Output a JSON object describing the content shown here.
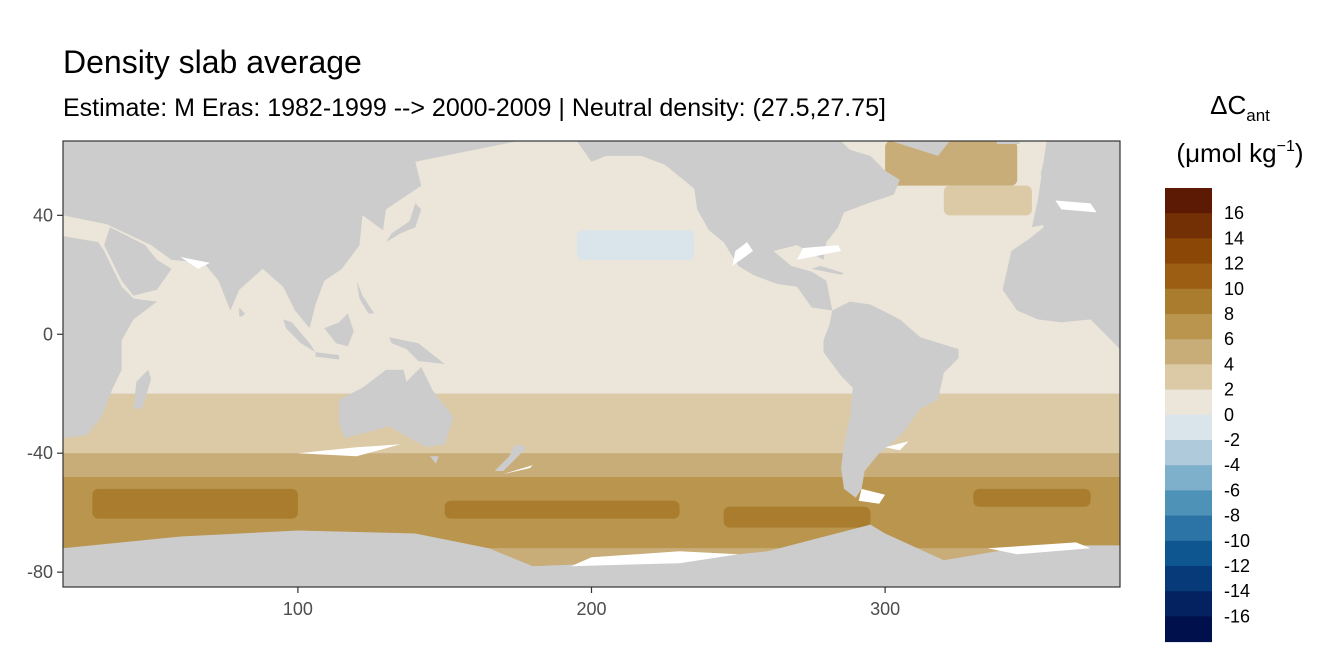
{
  "chart_data": {
    "type": "heatmap",
    "title": "Density slab average",
    "subtitle": "Estimate: M Eras: 1982-1999 --> 2000-2009 | Neutral density: (27.5,27.75]",
    "xlabel": "",
    "ylabel": "",
    "xlim": [
      20,
      380
    ],
    "ylim": [
      -85,
      65
    ],
    "x_ticks": [
      100,
      200,
      300
    ],
    "y_ticks": [
      40,
      0,
      -40,
      -80
    ],
    "grid": false,
    "land_color": "#cccccc",
    "no_data_color": "#ffffff",
    "legend": {
      "title_main": "ΔC",
      "title_sub": "ant",
      "unit_open": "(μmol kg",
      "unit_sup": "−1",
      "unit_close": ")",
      "placement": "right",
      "labels": [
        "16",
        "14",
        "12",
        "10",
        "8",
        "6",
        "4",
        "2",
        "0",
        "-2",
        "-4",
        "-6",
        "-8",
        "-10",
        "-12",
        "-14",
        "-16"
      ],
      "colors": [
        "#5c1a04",
        "#733005",
        "#8a4706",
        "#9b5e13",
        "#a97d2d",
        "#b9954e",
        "#c8ad79",
        "#dbcaa5",
        "#ebe5da",
        "#d9e5ea",
        "#afcbdb",
        "#7eafcb",
        "#4e92b8",
        "#2b74a5",
        "#0e5690",
        "#073a78",
        "#03225f",
        "#00104d"
      ]
    },
    "bands": [
      {
        "lat_from": -20,
        "lat_to": 65,
        "value": 1
      },
      {
        "lat_from": -40,
        "lat_to": -20,
        "value": 3
      },
      {
        "lat_from": -48,
        "lat_to": -40,
        "value": 5
      },
      {
        "lat_from": -72,
        "lat_to": -48,
        "value": 7
      },
      {
        "lat_from": -78,
        "lat_to": -72,
        "value": 5
      }
    ],
    "patches": [
      {
        "lon": [
          245,
          295
        ],
        "lat": [
          -65,
          -58
        ],
        "value": 9
      },
      {
        "lon": [
          30,
          100
        ],
        "lat": [
          -62,
          -52
        ],
        "value": 9
      },
      {
        "lon": [
          330,
          370
        ],
        "lat": [
          -58,
          -52
        ],
        "value": 9
      },
      {
        "lon": [
          150,
          230
        ],
        "lat": [
          -62,
          -56
        ],
        "value": 9
      },
      {
        "lon": [
          300,
          345
        ],
        "lat": [
          50,
          65
        ],
        "value": 5
      },
      {
        "lon": [
          320,
          350
        ],
        "lat": [
          40,
          50
        ],
        "value": 3
      },
      {
        "lon": [
          195,
          235
        ],
        "lat": [
          25,
          35
        ],
        "value": -1
      }
    ]
  }
}
